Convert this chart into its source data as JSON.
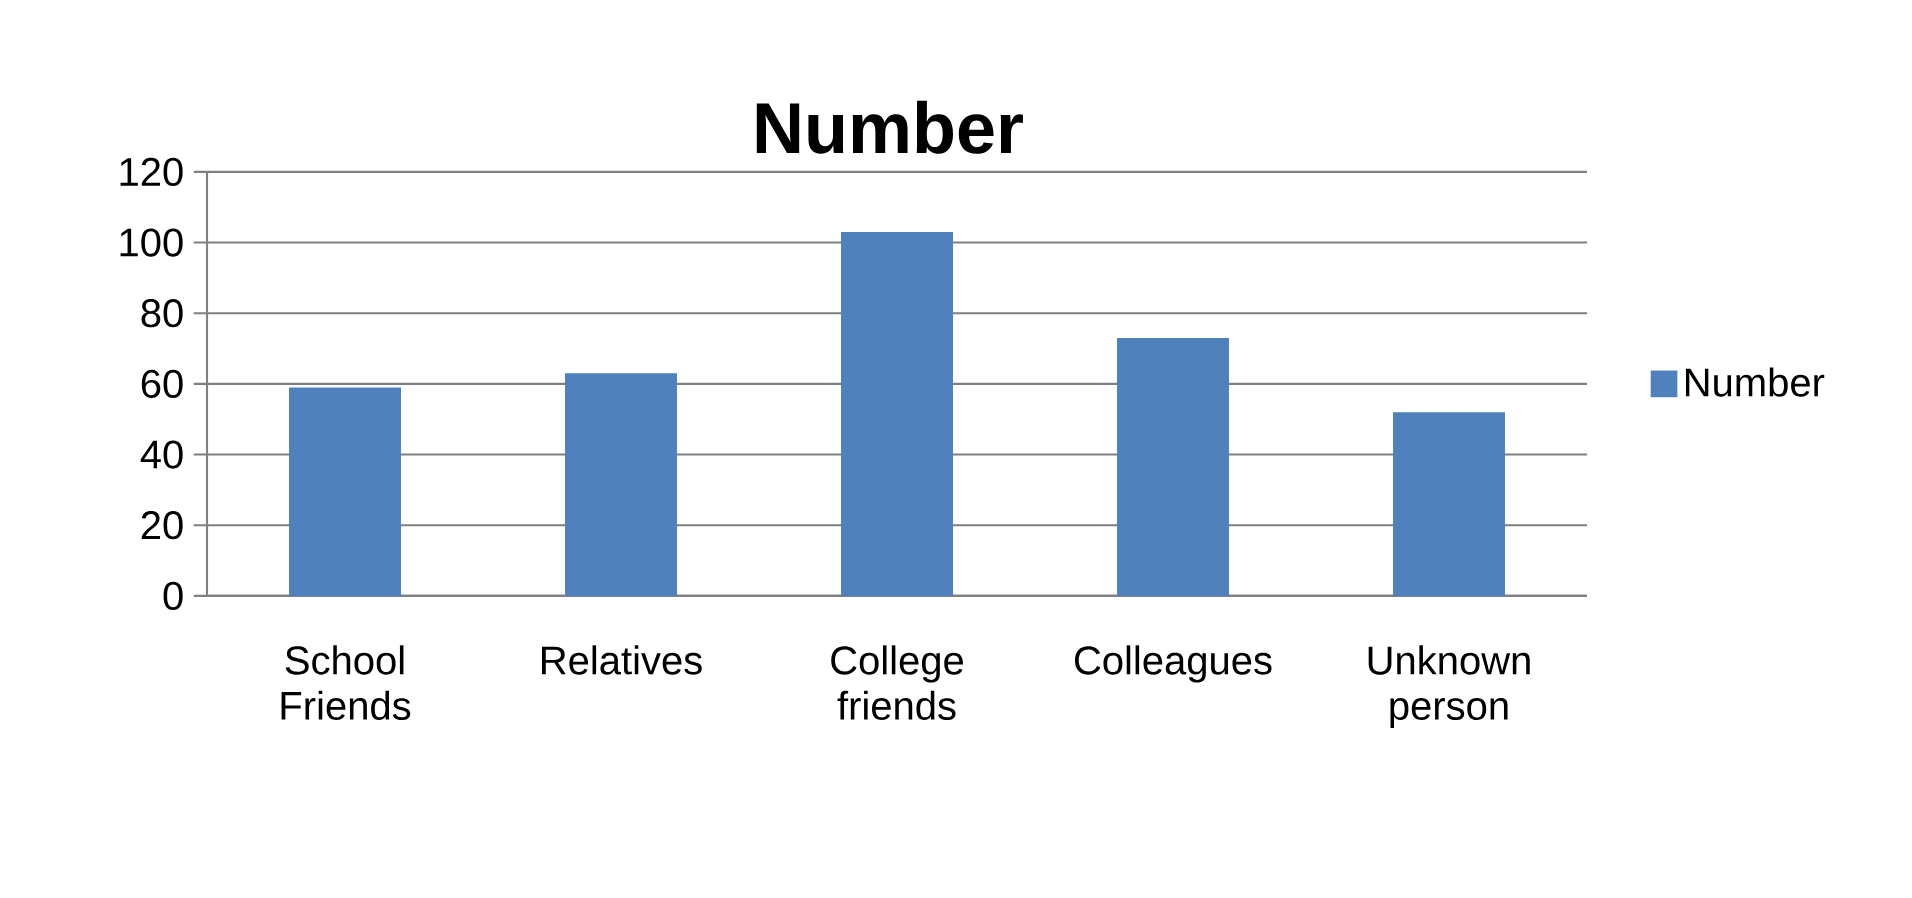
{
  "chart_data": {
    "type": "bar",
    "title": "Number",
    "categories": [
      "School Friends",
      "Relatives",
      "College friends",
      "Colleagues",
      "Unknown person"
    ],
    "series": [
      {
        "name": "Number",
        "color": "#4f81bd",
        "values": [
          59,
          63,
          103,
          73,
          52
        ]
      }
    ],
    "ylim": [
      0,
      120
    ],
    "yticks": [
      0,
      20,
      40,
      60,
      80,
      100,
      120
    ],
    "grid": "y",
    "legend": "right"
  }
}
